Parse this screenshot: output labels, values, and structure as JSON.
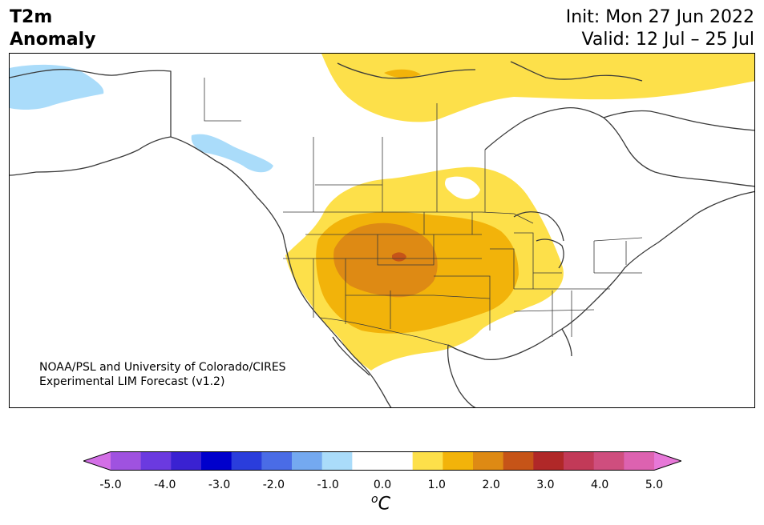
{
  "title": {
    "left_line1": "T2m",
    "left_line2": "Anomaly",
    "right_line1": "Init: Mon 27 Jun 2022",
    "right_line2": "Valid: 12 Jul – 25 Jul"
  },
  "credit": {
    "line1": "NOAA/PSL and University of Colorado/CIRES",
    "line2": "Experimental LIM Forecast (v1.2)"
  },
  "colorbar": {
    "colors": [
      "#d36fe6",
      "#9f52e0",
      "#6b3ae0",
      "#3a22d2",
      "#0000cc",
      "#2a3ddc",
      "#4a6ce6",
      "#74a9f0",
      "#aadcfa",
      "#ffffff",
      "#ffffff",
      "#fde04a",
      "#f2b30a",
      "#de8a14",
      "#c65418",
      "#b02828",
      "#c23a58",
      "#cf4e7e",
      "#dd62b0",
      "#e778d8"
    ],
    "tick_labels": [
      "-5.0",
      "-4.0",
      "-3.0",
      "-2.0",
      "-1.0",
      "0.0",
      "1.0",
      "2.0",
      "3.0",
      "4.0",
      "5.0"
    ],
    "unit": "C",
    "unit_prefix": "o"
  }
}
